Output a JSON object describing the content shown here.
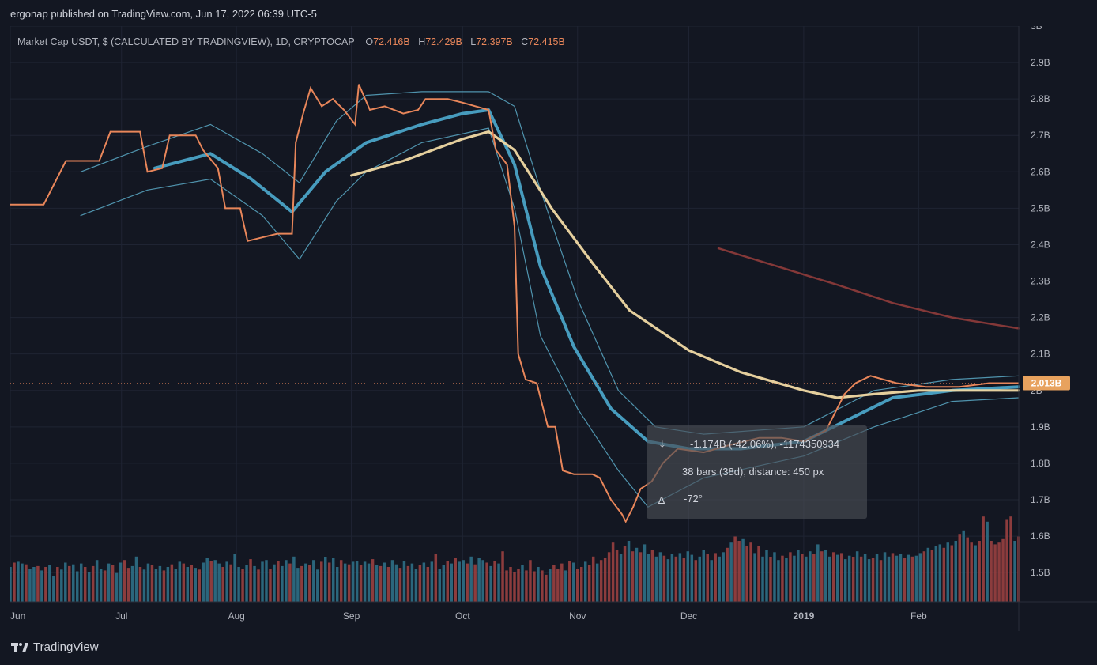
{
  "header": {
    "published_text": "ergonap published on TradingView.com, Jun 17, 2022 06:39 UTC-5"
  },
  "legend": {
    "symbol": "Market Cap USDT, $ (CALCULATED BY TRADINGVIEW), 1D, CRYPTOCAP",
    "o_label": "O",
    "o_value": "72.416B",
    "h_label": "H",
    "h_value": "72.429B",
    "l_label": "L",
    "l_value": "72.397B",
    "c_label": "C",
    "c_value": "72.415B"
  },
  "price_badge": {
    "text": "2.013B",
    "color": "#e8a25e"
  },
  "measure_tool": {
    "line1": "-1.174B (-42.06%), -1174350934",
    "line2": "38 bars (38d), distance: 450 px",
    "line3": "-72°"
  },
  "footer": {
    "brand": "TradingView"
  },
  "colors": {
    "background": "#131722",
    "candle": "#e8865a",
    "bb": "#5aa9c6",
    "ma_mid": "#4aa3c7",
    "ma_slow": "#f0d9a4",
    "ma_long": "#8a3a3a",
    "vol_up": "#2f6f86",
    "vol_down": "#9a4040",
    "grid": "#1f2433"
  },
  "chart_data": {
    "type": "line",
    "title": "Market Cap USDT, $ (CALCULATED BY TRADINGVIEW), 1D, CRYPTOCAP",
    "xlabel": "",
    "ylabel": "",
    "ylim": [
      1.42,
      3.0
    ],
    "y_ticks": [
      "3B",
      "2.9B",
      "2.8B",
      "2.7B",
      "2.6B",
      "2.5B",
      "2.4B",
      "2.3B",
      "2.2B",
      "2.1B",
      "2B",
      "1.9B",
      "1.8B",
      "1.7B",
      "1.6B",
      "1.5B"
    ],
    "y_tick_values": [
      3.0,
      2.9,
      2.8,
      2.7,
      2.6,
      2.5,
      2.4,
      2.3,
      2.2,
      2.1,
      2.0,
      1.9,
      1.8,
      1.7,
      1.6,
      1.5
    ],
    "x_ticks": [
      "Jun",
      "Jul",
      "Aug",
      "Sep",
      "Oct",
      "Nov",
      "Dec",
      "2019",
      "Feb"
    ],
    "x_tick_dates": [
      "2018-06-01",
      "2018-07-01",
      "2018-08-01",
      "2018-09-01",
      "2018-10-01",
      "2018-11-01",
      "2018-12-01",
      "2019-01-01",
      "2019-02-01"
    ],
    "x_range": [
      "2018-06-01",
      "2019-02-28"
    ],
    "grid": true,
    "series": [
      {
        "name": "",
        "role": "close",
        "points": [
          [
            "2018-06-01",
            2.51
          ],
          [
            "2018-06-10",
            2.51
          ],
          [
            "2018-06-16",
            2.63
          ],
          [
            "2018-06-25",
            2.63
          ],
          [
            "2018-06-28",
            2.71
          ],
          [
            "2018-07-06",
            2.71
          ],
          [
            "2018-07-08",
            2.6
          ],
          [
            "2018-07-12",
            2.61
          ],
          [
            "2018-07-14",
            2.7
          ],
          [
            "2018-07-21",
            2.7
          ],
          [
            "2018-07-23",
            2.66
          ],
          [
            "2018-07-27",
            2.61
          ],
          [
            "2018-07-29",
            2.5
          ],
          [
            "2018-08-02",
            2.5
          ],
          [
            "2018-08-04",
            2.41
          ],
          [
            "2018-08-08",
            2.42
          ],
          [
            "2018-08-12",
            2.43
          ],
          [
            "2018-08-16",
            2.43
          ],
          [
            "2018-08-17",
            2.68
          ],
          [
            "2018-08-19",
            2.76
          ],
          [
            "2018-08-21",
            2.83
          ],
          [
            "2018-08-24",
            2.78
          ],
          [
            "2018-08-27",
            2.8
          ],
          [
            "2018-08-30",
            2.77
          ],
          [
            "2018-09-02",
            2.73
          ],
          [
            "2018-09-03",
            2.84
          ],
          [
            "2018-09-06",
            2.77
          ],
          [
            "2018-09-10",
            2.78
          ],
          [
            "2018-09-15",
            2.76
          ],
          [
            "2018-09-19",
            2.77
          ],
          [
            "2018-09-21",
            2.8
          ],
          [
            "2018-09-27",
            2.8
          ],
          [
            "2018-10-01",
            2.79
          ],
          [
            "2018-10-08",
            2.77
          ],
          [
            "2018-10-10",
            2.66
          ],
          [
            "2018-10-13",
            2.62
          ],
          [
            "2018-10-15",
            2.45
          ],
          [
            "2018-10-16",
            2.1
          ],
          [
            "2018-10-18",
            2.03
          ],
          [
            "2018-10-21",
            2.02
          ],
          [
            "2018-10-24",
            1.9
          ],
          [
            "2018-10-26",
            1.9
          ],
          [
            "2018-10-28",
            1.78
          ],
          [
            "2018-10-31",
            1.77
          ],
          [
            "2018-11-05",
            1.77
          ],
          [
            "2018-11-07",
            1.76
          ],
          [
            "2018-11-10",
            1.7
          ],
          [
            "2018-11-13",
            1.66
          ],
          [
            "2018-11-14",
            1.64
          ],
          [
            "2018-11-16",
            1.68
          ],
          [
            "2018-11-18",
            1.73
          ],
          [
            "2018-11-21",
            1.75
          ],
          [
            "2018-11-24",
            1.8
          ],
          [
            "2018-11-28",
            1.84
          ],
          [
            "2018-12-05",
            1.83
          ],
          [
            "2018-12-12",
            1.85
          ],
          [
            "2018-12-20",
            1.87
          ],
          [
            "2018-12-26",
            1.87
          ],
          [
            "2019-01-01",
            1.86
          ],
          [
            "2019-01-07",
            1.89
          ],
          [
            "2019-01-12",
            1.99
          ],
          [
            "2019-01-15",
            2.02
          ],
          [
            "2019-01-19",
            2.04
          ],
          [
            "2019-01-26",
            2.02
          ],
          [
            "2019-02-03",
            2.01
          ],
          [
            "2019-02-12",
            2.01
          ],
          [
            "2019-02-20",
            2.02
          ],
          [
            "2019-02-28",
            2.02
          ]
        ]
      },
      {
        "name": "",
        "role": "ma_mid",
        "points": [
          [
            "2018-07-10",
            2.61
          ],
          [
            "2018-07-25",
            2.65
          ],
          [
            "2018-08-05",
            2.58
          ],
          [
            "2018-08-16",
            2.49
          ],
          [
            "2018-08-25",
            2.6
          ],
          [
            "2018-09-05",
            2.68
          ],
          [
            "2018-09-20",
            2.73
          ],
          [
            "2018-10-01",
            2.76
          ],
          [
            "2018-10-08",
            2.77
          ],
          [
            "2018-10-15",
            2.62
          ],
          [
            "2018-10-22",
            2.34
          ],
          [
            "2018-10-31",
            2.12
          ],
          [
            "2018-11-10",
            1.95
          ],
          [
            "2018-11-20",
            1.86
          ],
          [
            "2018-12-01",
            1.84
          ],
          [
            "2018-12-15",
            1.84
          ],
          [
            "2019-01-01",
            1.86
          ],
          [
            "2019-01-15",
            1.93
          ],
          [
            "2019-01-25",
            1.98
          ],
          [
            "2019-02-10",
            2.0
          ],
          [
            "2019-02-28",
            2.01
          ]
        ]
      },
      {
        "name": "",
        "role": "bb_upper",
        "points": [
          [
            "2018-06-20",
            2.6
          ],
          [
            "2018-07-08",
            2.67
          ],
          [
            "2018-07-25",
            2.73
          ],
          [
            "2018-08-08",
            2.65
          ],
          [
            "2018-08-18",
            2.57
          ],
          [
            "2018-08-28",
            2.74
          ],
          [
            "2018-09-05",
            2.81
          ],
          [
            "2018-09-20",
            2.82
          ],
          [
            "2018-10-08",
            2.82
          ],
          [
            "2018-10-15",
            2.78
          ],
          [
            "2018-10-22",
            2.55
          ],
          [
            "2018-11-01",
            2.25
          ],
          [
            "2018-11-12",
            2.0
          ],
          [
            "2018-11-22",
            1.9
          ],
          [
            "2018-12-05",
            1.88
          ],
          [
            "2019-01-01",
            1.9
          ],
          [
            "2019-01-20",
            2.0
          ],
          [
            "2019-02-10",
            2.03
          ],
          [
            "2019-02-28",
            2.04
          ]
        ]
      },
      {
        "name": "",
        "role": "bb_lower",
        "points": [
          [
            "2018-06-20",
            2.48
          ],
          [
            "2018-07-08",
            2.55
          ],
          [
            "2018-07-25",
            2.58
          ],
          [
            "2018-08-08",
            2.48
          ],
          [
            "2018-08-18",
            2.36
          ],
          [
            "2018-08-28",
            2.52
          ],
          [
            "2018-09-05",
            2.6
          ],
          [
            "2018-09-20",
            2.68
          ],
          [
            "2018-10-08",
            2.72
          ],
          [
            "2018-10-15",
            2.5
          ],
          [
            "2018-10-22",
            2.15
          ],
          [
            "2018-11-01",
            1.95
          ],
          [
            "2018-11-12",
            1.78
          ],
          [
            "2018-11-20",
            1.68
          ],
          [
            "2018-12-05",
            1.76
          ],
          [
            "2019-01-01",
            1.82
          ],
          [
            "2019-01-20",
            1.9
          ],
          [
            "2019-02-10",
            1.97
          ],
          [
            "2019-02-28",
            1.98
          ]
        ]
      },
      {
        "name": "",
        "role": "ma_slow",
        "points": [
          [
            "2018-09-01",
            2.59
          ],
          [
            "2018-09-15",
            2.63
          ],
          [
            "2018-10-01",
            2.69
          ],
          [
            "2018-10-08",
            2.71
          ],
          [
            "2018-10-15",
            2.66
          ],
          [
            "2018-10-25",
            2.5
          ],
          [
            "2018-11-05",
            2.35
          ],
          [
            "2018-11-15",
            2.22
          ],
          [
            "2018-12-01",
            2.11
          ],
          [
            "2018-12-15",
            2.05
          ],
          [
            "2019-01-01",
            2.0
          ],
          [
            "2019-01-10",
            1.98
          ],
          [
            "2019-01-20",
            1.99
          ],
          [
            "2019-02-01",
            2.0
          ],
          [
            "2019-02-28",
            2.0
          ]
        ]
      },
      {
        "name": "",
        "role": "ma_long",
        "points": [
          [
            "2018-12-09",
            2.39
          ],
          [
            "2018-12-25",
            2.34
          ],
          [
            "2019-01-10",
            2.29
          ],
          [
            "2019-01-25",
            2.24
          ],
          [
            "2019-02-10",
            2.2
          ],
          [
            "2019-02-28",
            2.17
          ]
        ]
      }
    ],
    "volume": {
      "first_date": "2018-06-01",
      "last_date": "2019-02-28",
      "note_units": "relative",
      "values": [
        0.4,
        0.45,
        0.46,
        0.44,
        0.43,
        0.38,
        0.4,
        0.41,
        0.36,
        0.4,
        0.42,
        0.3,
        0.4,
        0.37,
        0.45,
        0.41,
        0.43,
        0.35,
        0.44,
        0.4,
        0.34,
        0.41,
        0.48,
        0.38,
        0.36,
        0.44,
        0.42,
        0.33,
        0.45,
        0.48,
        0.39,
        0.41,
        0.52,
        0.4,
        0.37,
        0.44,
        0.42,
        0.38,
        0.41,
        0.36,
        0.4,
        0.43,
        0.38,
        0.46,
        0.44,
        0.4,
        0.42,
        0.39,
        0.37,
        0.45,
        0.5,
        0.47,
        0.48,
        0.44,
        0.4,
        0.46,
        0.43,
        0.55,
        0.4,
        0.38,
        0.42,
        0.49,
        0.41,
        0.37,
        0.46,
        0.48,
        0.38,
        0.43,
        0.47,
        0.41,
        0.48,
        0.44,
        0.52,
        0.39,
        0.41,
        0.44,
        0.42,
        0.48,
        0.37,
        0.46,
        0.51,
        0.45,
        0.5,
        0.4,
        0.48,
        0.44,
        0.43,
        0.46,
        0.47,
        0.42,
        0.46,
        0.44,
        0.49,
        0.42,
        0.41,
        0.45,
        0.4,
        0.48,
        0.43,
        0.39,
        0.47,
        0.41,
        0.44,
        0.38,
        0.42,
        0.45,
        0.4,
        0.46,
        0.55,
        0.38,
        0.42,
        0.47,
        0.44,
        0.5,
        0.46,
        0.48,
        0.44,
        0.52,
        0.43,
        0.5,
        0.48,
        0.45,
        0.41,
        0.47,
        0.44,
        0.58,
        0.36,
        0.4,
        0.34,
        0.38,
        0.42,
        0.36,
        0.48,
        0.35,
        0.4,
        0.36,
        0.31,
        0.38,
        0.42,
        0.38,
        0.44,
        0.36,
        0.47,
        0.45,
        0.38,
        0.4,
        0.46,
        0.42,
        0.52,
        0.44,
        0.48,
        0.5,
        0.57,
        0.68,
        0.6,
        0.55,
        0.64,
        0.7,
        0.58,
        0.62,
        0.57,
        0.66,
        0.55,
        0.6,
        0.52,
        0.57,
        0.53,
        0.49,
        0.55,
        0.52,
        0.56,
        0.5,
        0.58,
        0.54,
        0.48,
        0.52,
        0.6,
        0.55,
        0.48,
        0.56,
        0.52,
        0.57,
        0.62,
        0.68,
        0.75,
        0.7,
        0.72,
        0.64,
        0.68,
        0.56,
        0.64,
        0.52,
        0.6,
        0.51,
        0.57,
        0.48,
        0.53,
        0.5,
        0.57,
        0.53,
        0.6,
        0.55,
        0.52,
        0.58,
        0.55,
        0.66,
        0.58,
        0.6,
        0.52,
        0.57,
        0.54,
        0.56,
        0.49,
        0.53,
        0.51,
        0.58,
        0.52,
        0.55,
        0.49,
        0.5,
        0.55,
        0.48,
        0.57,
        0.52,
        0.56,
        0.53,
        0.55,
        0.5,
        0.54,
        0.52,
        0.53,
        0.56,
        0.58,
        0.62,
        0.6,
        0.64,
        0.66,
        0.62,
        0.68,
        0.65,
        0.7,
        0.78,
        0.82,
        0.74,
        0.68,
        0.65,
        0.7,
        0.98,
        0.92,
        0.7,
        0.66,
        0.68,
        0.72,
        0.95,
        0.98,
        0.7,
        0.75
      ],
      "down_flags": [
        0,
        1,
        0,
        0,
        1,
        0,
        0,
        1,
        0,
        1,
        0,
        0,
        1,
        0,
        0,
        1,
        0,
        0,
        0,
        1,
        0,
        1,
        0,
        0,
        1,
        0,
        1,
        0,
        0,
        1,
        1,
        0,
        0,
        1,
        0,
        0,
        1,
        0,
        0,
        1,
        0,
        1,
        0,
        0,
        1,
        0,
        1,
        0,
        1,
        0,
        0,
        1,
        0,
        0,
        1,
        0,
        1,
        0,
        0,
        1,
        0,
        1,
        0,
        1,
        0,
        0,
        1,
        0,
        1,
        0,
        0,
        1,
        0,
        0,
        1,
        0,
        1,
        0,
        0,
        1,
        0,
        1,
        0,
        0,
        1,
        0,
        1,
        0,
        0,
        1,
        0,
        0,
        1,
        0,
        1,
        0,
        1,
        0,
        0,
        1,
        0,
        1,
        0,
        0,
        1,
        0,
        1,
        0,
        1,
        0,
        0,
        1,
        0,
        1,
        0,
        0,
        1,
        0,
        1,
        0,
        0,
        1,
        0,
        1,
        0,
        1,
        1,
        1,
        1,
        1,
        0,
        1,
        1,
        1,
        0,
        1,
        1,
        0,
        1,
        1,
        1,
        0,
        1,
        0,
        1,
        1,
        0,
        1,
        1,
        0,
        1,
        1,
        1,
        1,
        1,
        0,
        1,
        0,
        1,
        0,
        1,
        0,
        0,
        1,
        0,
        0,
        1,
        0,
        0,
        1,
        0,
        1,
        0,
        0,
        1,
        0,
        0,
        1,
        0,
        1,
        0,
        0,
        1,
        0,
        1,
        1,
        0,
        1,
        1,
        0,
        1,
        0,
        0,
        1,
        0,
        0,
        1,
        0,
        1,
        0,
        0,
        1,
        0,
        0,
        1,
        0,
        1,
        0,
        0,
        1,
        0,
        1,
        0,
        0,
        1,
        0,
        1,
        0,
        0,
        1,
        0,
        1,
        0,
        0,
        1,
        0,
        0,
        1,
        0,
        1,
        0,
        0,
        1,
        0,
        1,
        0,
        0,
        1,
        0,
        1,
        0,
        1,
        0,
        1,
        1,
        0,
        1,
        1,
        0,
        1,
        1,
        1,
        1,
        1,
        1,
        0,
        1,
        0,
        1,
        0,
        1,
        0,
        1
      ]
    }
  }
}
